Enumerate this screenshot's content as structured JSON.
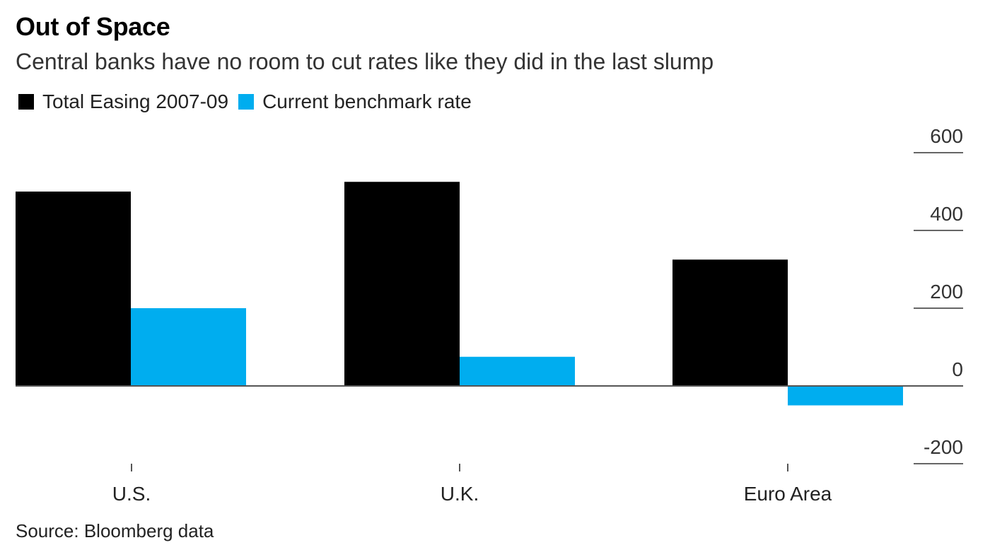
{
  "chart_data": {
    "type": "bar",
    "title": "Out of Space",
    "subtitle": "Central banks have no room to cut rates like they did in the last slump",
    "categories": [
      "U.S.",
      "U.K.",
      "Euro Area"
    ],
    "series": [
      {
        "name": "Total Easing 2007-09",
        "color": "#000000",
        "values": [
          500,
          525,
          325
        ]
      },
      {
        "name": "Current benchmark rate",
        "color": "#00adef",
        "values": [
          200,
          75,
          -50
        ]
      }
    ],
    "ylim": [
      -200,
      600
    ],
    "yticks": [
      600,
      400,
      200,
      0,
      -200
    ],
    "y_axis_side": "right",
    "grid": false,
    "legend_position": "top-left",
    "source": "Source: Bloomberg data"
  }
}
